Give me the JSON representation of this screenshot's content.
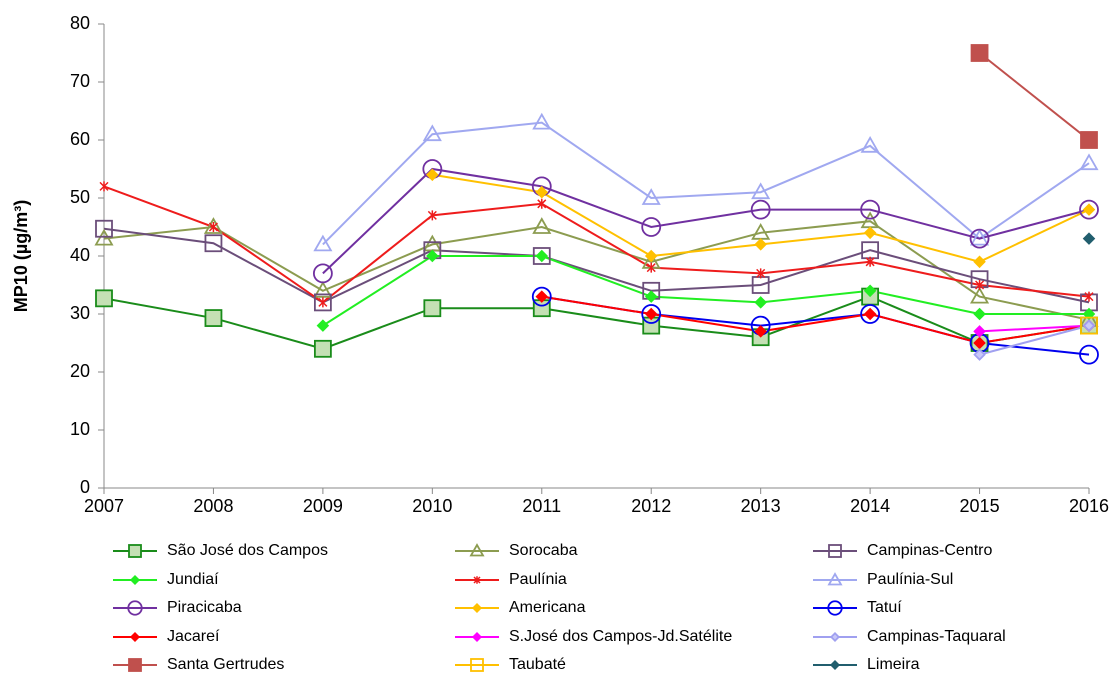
{
  "chart_data": {
    "type": "line",
    "y_label": "MP10 (µg/m³)",
    "categories": [
      "2007",
      "2008",
      "2009",
      "2010",
      "2011",
      "2012",
      "2013",
      "2014",
      "2015",
      "2016"
    ],
    "ylim": [
      0,
      80
    ],
    "yticks": [
      0,
      10,
      20,
      30,
      40,
      50,
      60,
      70,
      80
    ],
    "series": [
      {
        "name": "São José dos Campos",
        "color": "#1a8c1a",
        "marker": "square",
        "marker_fill": "#c4e0b4",
        "values": [
          32.7,
          29.3,
          24,
          31,
          31,
          28,
          26,
          33,
          25,
          28
        ]
      },
      {
        "name": "Sorocaba",
        "color": "#8c9c50",
        "marker": "triangle",
        "marker_fill": "none",
        "values": [
          43,
          45,
          34,
          42,
          45,
          39,
          44,
          46,
          33,
          29
        ]
      },
      {
        "name": "Campinas-Centro",
        "color": "#6b4e7a",
        "marker": "square",
        "marker_fill": "none",
        "values": [
          44.7,
          42.2,
          32,
          41,
          40,
          34,
          35,
          41,
          36,
          32
        ]
      },
      {
        "name": "Jundiaí",
        "color": "#22ee22",
        "marker": "diamond",
        "marker_fill": "#22ee22",
        "values": [
          null,
          null,
          28,
          40,
          40,
          33,
          32,
          34,
          30,
          30
        ]
      },
      {
        "name": "Paulínia",
        "color": "#ee1c1c",
        "marker": "asterisk",
        "marker_fill": "none",
        "values": [
          52,
          45,
          32,
          47,
          49,
          38,
          37,
          39,
          35,
          33
        ]
      },
      {
        "name": "Paulínia-Sul",
        "color": "#a0a8f0",
        "marker": "triangle",
        "marker_fill": "none",
        "values": [
          null,
          null,
          42,
          61,
          63,
          50,
          51,
          59,
          43,
          56
        ]
      },
      {
        "name": "Piracicaba",
        "color": "#7030a0",
        "marker": "circle",
        "marker_fill": "none",
        "values": [
          null,
          null,
          37,
          55,
          52,
          45,
          48,
          48,
          43,
          48
        ]
      },
      {
        "name": "Americana",
        "color": "#ffc000",
        "marker": "diamond",
        "marker_fill": "#ffc000",
        "values": [
          null,
          null,
          null,
          54,
          51,
          40,
          42,
          44,
          39,
          48
        ]
      },
      {
        "name": "Tatuí",
        "color": "#0000ee",
        "marker": "circle",
        "marker_fill": "none",
        "values": [
          null,
          null,
          null,
          null,
          33,
          30,
          28,
          30,
          25,
          23
        ]
      },
      {
        "name": "Jacareí",
        "color": "#ff0000",
        "marker": "diamond",
        "marker_fill": "#ff0000",
        "values": [
          null,
          null,
          null,
          null,
          33,
          30,
          27,
          30,
          25,
          28
        ]
      },
      {
        "name": "S.José dos Campos-Jd.Satélite",
        "color": "#ff00ff",
        "marker": "diamond",
        "marker_fill": "#ff00ff",
        "values": [
          null,
          null,
          null,
          null,
          null,
          null,
          null,
          null,
          27,
          28
        ]
      },
      {
        "name": "Campinas-Taquaral",
        "color": "#a0a0f0",
        "marker": "diamond",
        "marker_fill": "#c8c8f8",
        "values": [
          null,
          null,
          null,
          null,
          null,
          null,
          null,
          null,
          23,
          28
        ]
      },
      {
        "name": "Santa Gertrudes",
        "color": "#c0504d",
        "marker": "square",
        "marker_fill": "#c0504d",
        "values": [
          null,
          null,
          null,
          null,
          null,
          null,
          null,
          null,
          75,
          60
        ]
      },
      {
        "name": "Taubaté",
        "color": "#ffc000",
        "marker": "square",
        "marker_fill": "none",
        "values": [
          null,
          null,
          null,
          null,
          null,
          null,
          null,
          null,
          null,
          28
        ]
      },
      {
        "name": "Limeira",
        "color": "#215e6e",
        "marker": "diamond",
        "marker_fill": "#215e6e",
        "values": [
          null,
          null,
          null,
          null,
          null,
          null,
          null,
          null,
          null,
          43
        ]
      }
    ]
  }
}
